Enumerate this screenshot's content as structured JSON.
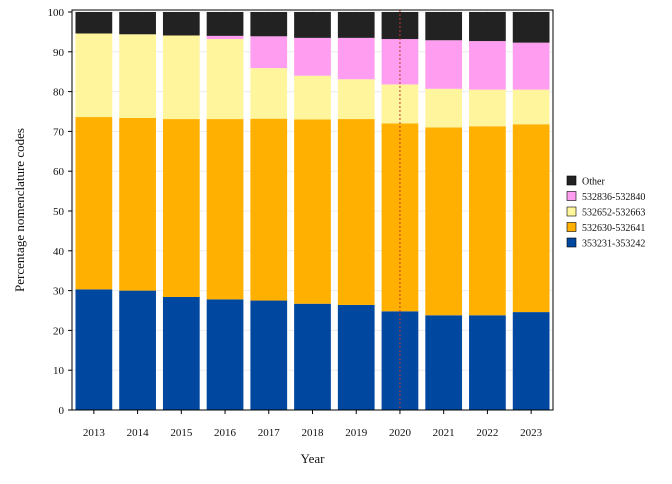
{
  "chart_data": {
    "type": "bar",
    "stacked": true,
    "xlabel": "Year",
    "ylabel": "Percentage nomenclature codes",
    "ylim": [
      0,
      100
    ],
    "yticks": [
      0,
      10,
      20,
      30,
      40,
      50,
      60,
      70,
      80,
      90,
      100
    ],
    "grid": true,
    "legend_position": "right",
    "categories": [
      "2013",
      "2014",
      "2015",
      "2016",
      "2017",
      "2018",
      "2019",
      "2020",
      "2021",
      "2022",
      "2023"
    ],
    "reference_line": {
      "x": "2020",
      "color": "#c0392b",
      "style": "dotted"
    },
    "series": [
      {
        "name": "353231-353242",
        "color": "#0047a0",
        "values": [
          30.3,
          30.0,
          28.4,
          27.8,
          27.5,
          26.7,
          26.4,
          24.8,
          23.8,
          23.8,
          24.6
        ]
      },
      {
        "name": "532630-532641",
        "color": "#ffb000",
        "values": [
          43.3,
          43.4,
          44.7,
          45.3,
          45.7,
          46.3,
          46.7,
          47.2,
          47.2,
          47.5,
          47.2
        ]
      },
      {
        "name": "532652-532663",
        "color": "#fff59d",
        "values": [
          21.0,
          21.0,
          21.0,
          20.1,
          12.7,
          11.0,
          10.0,
          9.8,
          9.7,
          9.2,
          8.7
        ]
      },
      {
        "name": "532836-532840",
        "color": "#ff9ef0",
        "values": [
          0.0,
          0.0,
          0.0,
          0.8,
          8.0,
          9.5,
          10.4,
          11.4,
          12.2,
          12.2,
          11.8
        ]
      },
      {
        "name": "Other",
        "color": "#222222",
        "values": [
          5.4,
          5.6,
          5.9,
          6.0,
          6.1,
          6.5,
          6.5,
          6.8,
          7.1,
          7.3,
          7.7
        ]
      }
    ],
    "legend_order": [
      "Other",
      "532836-532840",
      "532652-532663",
      "532630-532641",
      "353231-353242"
    ]
  }
}
